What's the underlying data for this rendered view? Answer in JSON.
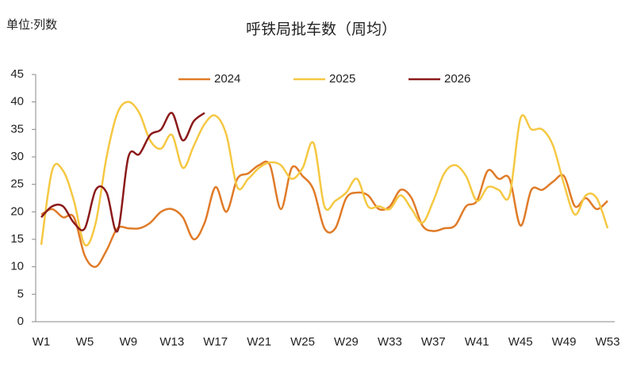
{
  "chart_data": {
    "type": "line",
    "title": "呼铁局批车数（周均）",
    "unit_label": "单位:列数",
    "categories": [
      "W1",
      null,
      null,
      null,
      "W5",
      null,
      null,
      null,
      "W9",
      null,
      null,
      null,
      "W13",
      null,
      null,
      null,
      "W17",
      null,
      null,
      null,
      "W21",
      null,
      null,
      null,
      "W25",
      null,
      null,
      null,
      "W29",
      null,
      null,
      null,
      "W33",
      null,
      null,
      null,
      "W37",
      null,
      null,
      null,
      "W41",
      null,
      null,
      null,
      "W45",
      null,
      null,
      null,
      "W49",
      null,
      null,
      null,
      "W53"
    ],
    "ylim": [
      0,
      45
    ],
    "yticks": [
      0,
      5,
      10,
      15,
      20,
      25,
      30,
      35,
      40,
      45
    ],
    "legend": "top",
    "series": [
      {
        "name": "2024",
        "color": "#e07b28",
        "values": [
          19.5,
          20.5,
          19,
          19,
          12,
          10,
          13,
          17,
          17,
          17,
          18,
          20,
          20.5,
          19,
          15,
          18,
          24.5,
          20,
          26,
          27,
          28.5,
          28.5,
          20.5,
          28,
          26.5,
          24,
          17,
          17,
          22.5,
          23.5,
          23,
          20.5,
          21,
          24,
          22.5,
          17.5,
          16.5,
          17,
          17.5,
          21,
          22,
          27.5,
          26,
          26,
          17.5,
          24,
          24,
          25.5,
          26.5,
          21,
          22.5,
          20.5,
          22
        ]
      },
      {
        "name": "2025",
        "color": "#f5c842",
        "values": [
          14,
          27.5,
          27.5,
          22,
          14,
          18,
          30,
          38,
          40,
          38,
          33,
          31.5,
          34,
          28,
          32,
          36,
          37.5,
          34,
          24.5,
          26,
          28,
          29,
          28.5,
          26,
          28,
          32.5,
          21,
          22,
          23.5,
          26,
          21,
          21,
          20.5,
          23,
          20.5,
          18,
          22,
          27,
          28.5,
          26.5,
          22,
          24.5,
          24,
          23,
          37,
          35,
          35,
          32,
          25,
          19.5,
          23,
          22.5,
          17
        ]
      },
      {
        "name": "2026",
        "color": "#8b1a1a",
        "values": [
          19,
          21,
          21,
          18,
          17,
          24,
          23.5,
          16.5,
          30,
          30.5,
          34,
          35,
          38,
          33,
          36.5,
          38,
          null,
          null,
          null,
          null,
          null,
          null,
          null,
          null,
          null,
          null,
          null,
          null,
          null,
          null,
          null,
          null,
          null,
          null,
          null,
          null,
          null,
          null,
          null,
          null,
          null,
          null,
          null,
          null,
          null,
          null,
          null,
          null,
          null,
          null,
          null,
          null,
          null
        ]
      }
    ]
  }
}
